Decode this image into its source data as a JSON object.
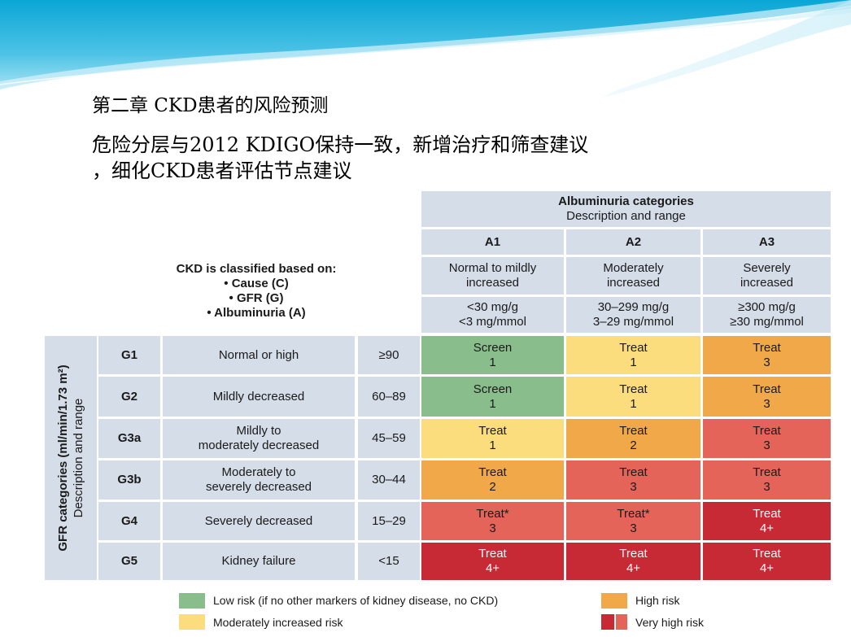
{
  "slide": {
    "title_line1": "第二章 CKD患者的风险预测",
    "title_line2": "危险分层与2012 KDIGO保持一致，新增治疗和筛查建议",
    "title_line3": "，细化CKD患者评估节点建议"
  },
  "table": {
    "albuminuria_header_title": "Albuminuria categories",
    "albuminuria_header_sub": "Description and range",
    "classify_title": "CKD is classified based on:",
    "classify_items": [
      "• Cause (C)",
      "• GFR (G)",
      "• Albuminuria (A)"
    ],
    "gfr_axis_title": "GFR categories (ml/min/1.73 m²)",
    "gfr_axis_sub": "Description and range",
    "albuminuria_columns": [
      {
        "code": "A1",
        "desc1": "Normal to mildly",
        "desc2": "increased",
        "range1": "<30 mg/g",
        "range2": "<3 mg/mmol"
      },
      {
        "code": "A2",
        "desc1": "Moderately",
        "desc2": "increased",
        "range1": "30–299 mg/g",
        "range2": "3–29 mg/mmol"
      },
      {
        "code": "A3",
        "desc1": "Severely",
        "desc2": "increased",
        "range1": "≥300 mg/g",
        "range2": "≥30 mg/mmol"
      }
    ],
    "gfr_rows": [
      {
        "code": "G1",
        "desc1": "Normal or high",
        "desc2": "",
        "range": "≥90",
        "cells": [
          {
            "action": "Screen",
            "freq": "1",
            "risk": "low"
          },
          {
            "action": "Treat",
            "freq": "1",
            "risk": "moderate"
          },
          {
            "action": "Treat",
            "freq": "3",
            "risk": "high"
          }
        ]
      },
      {
        "code": "G2",
        "desc1": "Mildly decreased",
        "desc2": "",
        "range": "60–89",
        "cells": [
          {
            "action": "Screen",
            "freq": "1",
            "risk": "low"
          },
          {
            "action": "Treat",
            "freq": "1",
            "risk": "moderate"
          },
          {
            "action": "Treat",
            "freq": "3",
            "risk": "high"
          }
        ]
      },
      {
        "code": "G3a",
        "desc1": "Mildly to",
        "desc2": "moderately decreased",
        "range": "45–59",
        "cells": [
          {
            "action": "Treat",
            "freq": "1",
            "risk": "moderate"
          },
          {
            "action": "Treat",
            "freq": "2",
            "risk": "high"
          },
          {
            "action": "Treat",
            "freq": "3",
            "risk": "very-high"
          }
        ]
      },
      {
        "code": "G3b",
        "desc1": "Moderately to",
        "desc2": "severely decreased",
        "range": "30–44",
        "cells": [
          {
            "action": "Treat",
            "freq": "2",
            "risk": "high"
          },
          {
            "action": "Treat",
            "freq": "3",
            "risk": "very-high"
          },
          {
            "action": "Treat",
            "freq": "3",
            "risk": "very-high"
          }
        ]
      },
      {
        "code": "G4",
        "desc1": "Severely decreased",
        "desc2": "",
        "range": "15–29",
        "cells": [
          {
            "action": "Treat*",
            "freq": "3",
            "risk": "very-high"
          },
          {
            "action": "Treat*",
            "freq": "3",
            "risk": "very-high"
          },
          {
            "action": "Treat",
            "freq": "4+",
            "risk": "very-high-dark"
          }
        ]
      },
      {
        "code": "G5",
        "desc1": "Kidney failure",
        "desc2": "",
        "range": "<15",
        "cells": [
          {
            "action": "Treat",
            "freq": "4+",
            "risk": "very-high-dark"
          },
          {
            "action": "Treat",
            "freq": "4+",
            "risk": "very-high-dark"
          },
          {
            "action": "Treat",
            "freq": "4+",
            "risk": "very-high-dark"
          }
        ]
      }
    ]
  },
  "legend": {
    "low": "Low risk (if no other markers of kidney disease, no CKD)",
    "moderate": "Moderately increased risk",
    "high": "High risk",
    "very_high": "Very high risk"
  },
  "colors": {
    "header_bg": "#d5dde9",
    "low": "#89bd8b",
    "moderate": "#fbdd7d",
    "high": "#f0a848",
    "very_high": "#e4645a",
    "very_high_dark": "#c72935"
  }
}
